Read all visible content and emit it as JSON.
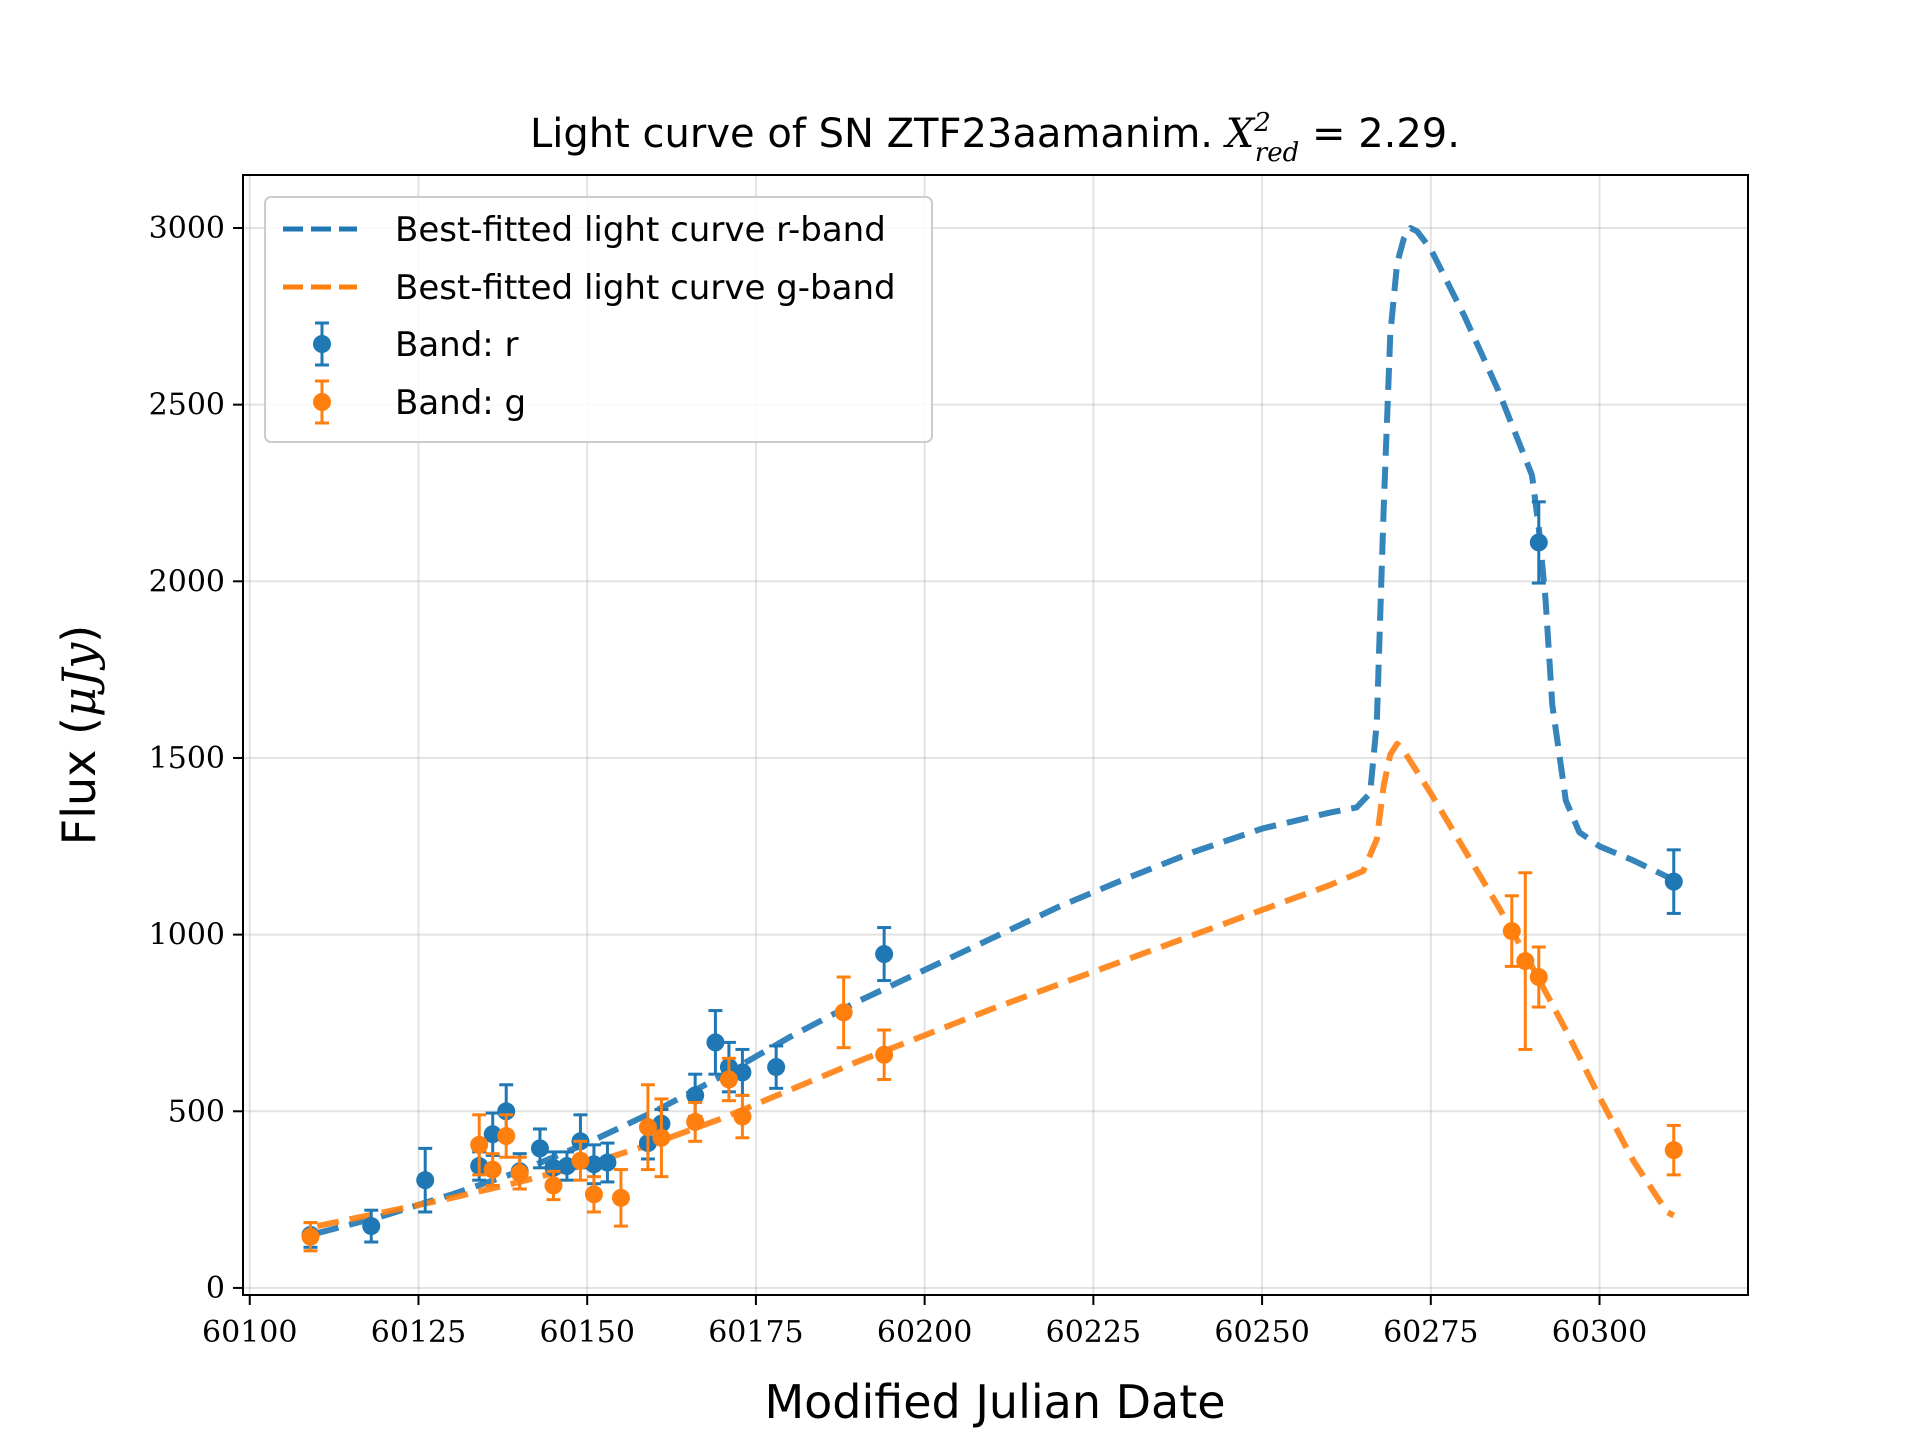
{
  "chart_data": {
    "type": "scatter",
    "title_prefix": "Light curve of SN ZTF23aamanim. ",
    "title_math": "X",
    "title_sup": "2",
    "title_sub": "red",
    "title_suffix": " = 2.29.",
    "xlabel": "Modified Julian Date",
    "ylabel_prefix": "Flux (",
    "ylabel_math": "μJy",
    "ylabel_suffix": ")",
    "xlim": [
      60099,
      60322
    ],
    "ylim": [
      -20,
      3150
    ],
    "xticks": [
      "60100",
      "60125",
      "60150",
      "60175",
      "60200",
      "60225",
      "60250",
      "60275",
      "60300"
    ],
    "yticks": [
      "0",
      "500",
      "1000",
      "1500",
      "2000",
      "2500",
      "3000"
    ],
    "grid": true,
    "legend_position": "top-left",
    "series": [
      {
        "name": "Best-fitted light curve r-band",
        "kind": "line",
        "style": "dashed",
        "color": "#1f77b4",
        "x": [
          60110,
          60120,
          60130,
          60140,
          60150,
          60160,
          60170,
          60180,
          60190,
          60200,
          60210,
          60220,
          60230,
          60240,
          60250,
          60260,
          60264,
          60266,
          60267,
          60268,
          60269,
          60270,
          60271,
          60272,
          60273,
          60275,
          60280,
          60285,
          60290,
          60291,
          60292,
          60293,
          60295,
          60297,
          60300,
          60305,
          60311
        ],
        "y": [
          155,
          205,
          265,
          330,
          410,
          500,
          600,
          710,
          810,
          900,
          990,
          1080,
          1160,
          1235,
          1300,
          1345,
          1360,
          1400,
          1600,
          2200,
          2700,
          2900,
          2970,
          3000,
          2990,
          2940,
          2750,
          2540,
          2300,
          2150,
          1950,
          1650,
          1380,
          1290,
          1250,
          1210,
          1155
        ]
      },
      {
        "name": "Best-fitted light curve g-band",
        "kind": "line",
        "style": "dashed",
        "color": "#ff7f0e",
        "x": [
          60110,
          60120,
          60130,
          60140,
          60150,
          60160,
          60170,
          60180,
          60190,
          60200,
          60210,
          60220,
          60230,
          60240,
          60250,
          60260,
          60265,
          60267,
          60268,
          60269,
          60270,
          60271,
          60272,
          60275,
          60280,
          60285,
          60290,
          60295,
          60300,
          60305,
          60310,
          60311
        ],
        "y": [
          175,
          215,
          255,
          300,
          350,
          410,
          480,
          560,
          640,
          715,
          790,
          860,
          930,
          1000,
          1070,
          1140,
          1180,
          1270,
          1420,
          1510,
          1540,
          1520,
          1490,
          1400,
          1240,
          1080,
          910,
          730,
          540,
          360,
          215,
          205
        ]
      },
      {
        "name": "Band: r",
        "kind": "errorbar",
        "color": "#1f77b4",
        "x": [
          60109,
          60118,
          60126,
          60134,
          60136,
          60138,
          60140,
          60143,
          60145,
          60147,
          60149,
          60151,
          60153,
          60159,
          60161,
          60166,
          60169,
          60171,
          60173,
          60178,
          60194,
          60291,
          60311
        ],
        "y": [
          150,
          175,
          305,
          345,
          435,
          500,
          330,
          395,
          340,
          345,
          415,
          350,
          355,
          410,
          465,
          545,
          695,
          625,
          610,
          625,
          945,
          2110,
          1150
        ],
        "yerr": [
          35,
          45,
          90,
          40,
          60,
          75,
          50,
          55,
          45,
          40,
          75,
          55,
          55,
          45,
          40,
          60,
          90,
          70,
          65,
          60,
          75,
          115,
          90
        ]
      },
      {
        "name": "Band: g",
        "kind": "errorbar",
        "color": "#ff7f0e",
        "x": [
          60109,
          60134,
          60136,
          60138,
          60140,
          60145,
          60149,
          60151,
          60155,
          60159,
          60161,
          60166,
          60171,
          60173,
          60188,
          60194,
          60287,
          60289,
          60291,
          60311
        ],
        "y": [
          145,
          405,
          335,
          430,
          325,
          290,
          360,
          265,
          255,
          455,
          425,
          470,
          590,
          485,
          780,
          660,
          1010,
          925,
          880,
          390
        ],
        "yerr": [
          40,
          85,
          45,
          60,
          45,
          40,
          55,
          50,
          80,
          120,
          110,
          55,
          60,
          60,
          100,
          70,
          100,
          250,
          85,
          70
        ]
      }
    ]
  }
}
